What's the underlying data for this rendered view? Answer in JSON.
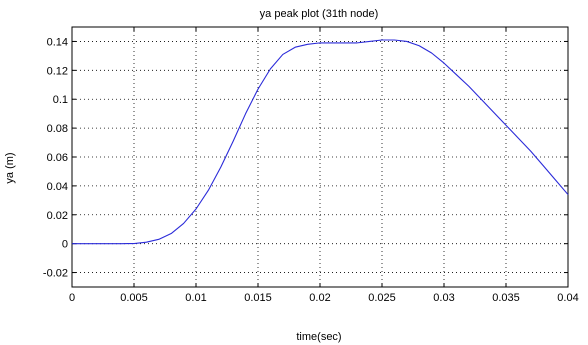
{
  "chart_data": {
    "type": "line",
    "title": "ya peak plot (31th node)",
    "xlabel": "time(sec)",
    "ylabel": "ya (m)",
    "xlim": [
      0,
      0.04
    ],
    "ylim": [
      -0.03,
      0.15
    ],
    "grid": true,
    "x_ticks": [
      0,
      0.005,
      0.01,
      0.015,
      0.02,
      0.025,
      0.03,
      0.035,
      0.04
    ],
    "x_tick_labels": [
      "0",
      "0.005",
      "0.01",
      "0.015",
      "0.02",
      "0.025",
      "0.03",
      "0.035",
      "0.04"
    ],
    "y_ticks": [
      -0.02,
      0,
      0.02,
      0.04,
      0.06,
      0.08,
      0.1,
      0.12,
      0.14
    ],
    "y_tick_labels": [
      "-0.02",
      "0",
      "0.02",
      "0.04",
      "0.06",
      "0.08",
      "0.1",
      "0.12",
      "0.14"
    ],
    "line_color": "#2b2bd9",
    "series": [
      {
        "x": [
          0,
          0.001,
          0.002,
          0.003,
          0.004,
          0.005,
          0.006,
          0.007,
          0.008,
          0.009,
          0.01,
          0.011,
          0.012,
          0.013,
          0.014,
          0.015,
          0.016,
          0.017,
          0.018,
          0.019,
          0.02,
          0.021,
          0.022,
          0.023,
          0.024,
          0.025,
          0.026,
          0.027,
          0.028,
          0.029,
          0.03,
          0.031,
          0.032,
          0.033,
          0.034,
          0.035,
          0.036,
          0.037,
          0.038,
          0.039,
          0.04
        ],
        "y": [
          0,
          0,
          0,
          0,
          0,
          0.0001,
          0.001,
          0.003,
          0.007,
          0.014,
          0.024,
          0.037,
          0.053,
          0.071,
          0.09,
          0.107,
          0.121,
          0.131,
          0.136,
          0.138,
          0.139,
          0.139,
          0.139,
          0.139,
          0.14,
          0.141,
          0.141,
          0.14,
          0.137,
          0.132,
          0.125,
          0.117,
          0.109,
          0.1,
          0.091,
          0.082,
          0.073,
          0.064,
          0.054,
          0.044,
          0.034
        ]
      }
    ]
  }
}
